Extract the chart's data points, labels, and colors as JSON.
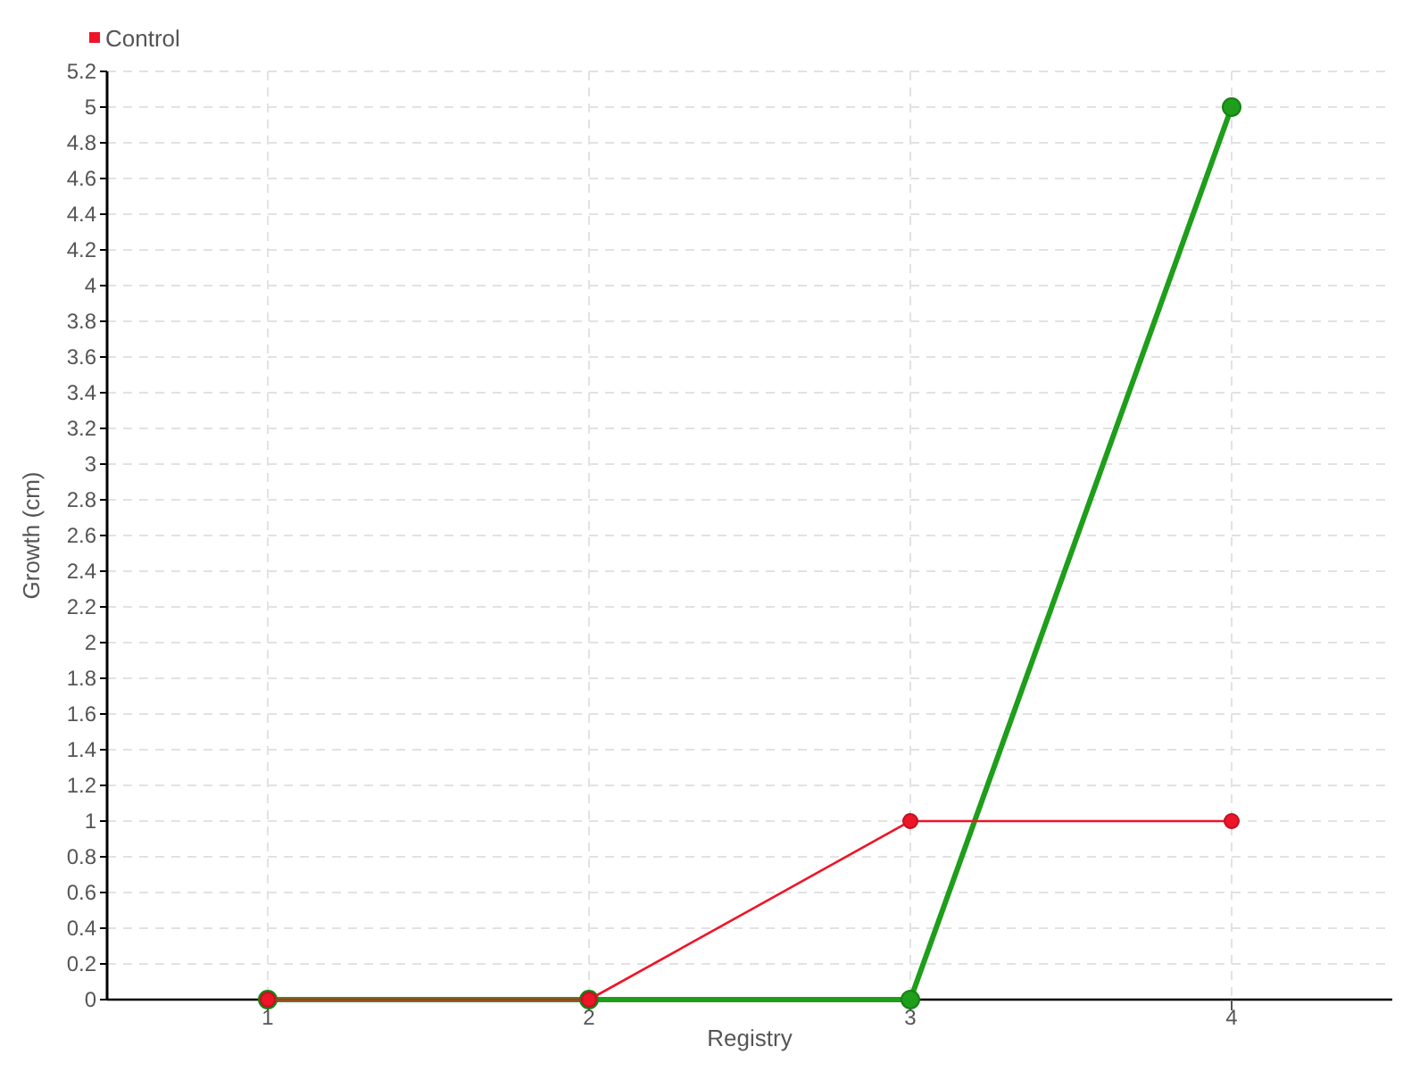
{
  "chart_data": {
    "type": "line",
    "xlabel": "Registry",
    "ylabel": "Growth (cm)",
    "x": [
      1,
      2,
      3,
      4
    ],
    "series": [
      {
        "color": "#1e9e1a",
        "values": [
          0,
          0,
          0,
          5
        ]
      },
      {
        "name": "Control",
        "color": "#ee1528",
        "values": [
          0,
          0,
          1,
          1
        ]
      }
    ],
    "xlim": [
      0.5,
      4.5
    ],
    "xticks": [
      1,
      2,
      3,
      4
    ],
    "ylim": [
      0,
      5.2
    ],
    "yticks": [
      0,
      0.2,
      0.4,
      0.6,
      0.8,
      1,
      1.2,
      1.4,
      1.6,
      1.8,
      2,
      2.2,
      2.4,
      2.6,
      2.8,
      3,
      3.2,
      3.4,
      3.6,
      3.8,
      4,
      4.2,
      4.4,
      4.6,
      4.8,
      5,
      5.2
    ],
    "grid": true,
    "legend": "top left",
    "marker": "circle",
    "line_style": "solid"
  }
}
